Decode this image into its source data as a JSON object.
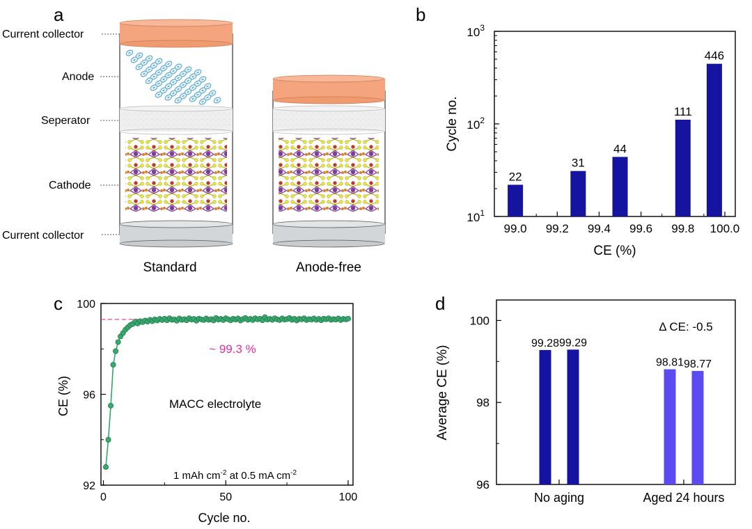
{
  "panels": {
    "a": {
      "letter": "a",
      "layer_labels": [
        "Current collector",
        "Anode",
        "Seperator",
        "Cathode",
        "Current collector"
      ],
      "cell_labels": [
        "Standard",
        "Anode-free"
      ]
    },
    "b": {
      "letter": "b"
    },
    "c": {
      "letter": "c"
    },
    "d": {
      "letter": "d"
    }
  },
  "colors": {
    "collector_top": "#f4a57e",
    "collector_bottom": "#d3d6d9",
    "separator": "#ececec",
    "anode_particle": "#6fb6dd",
    "bar_dark": "#1414a0",
    "bar_light": "#5b4bf0",
    "line_green": "#2ea866",
    "marker_green": "#3aa870",
    "reference_line": "#e8479a",
    "annotation_magenta": "#e030a0"
  },
  "chart_data": [
    {
      "id": "b",
      "type": "bar",
      "x": [
        99.0,
        99.3,
        99.5,
        99.8,
        99.95
      ],
      "values": [
        22,
        31,
        44,
        111,
        446
      ],
      "data_labels": [
        "22",
        "31",
        "44",
        "111",
        "446"
      ],
      "xlabel": "CE (%)",
      "ylabel": "Cycle no.",
      "xlim": [
        98.9,
        100.05
      ],
      "xticks": [
        "99.0",
        "99.2",
        "99.4",
        "99.6",
        "99.8",
        "100.0"
      ],
      "ylim": [
        10,
        1000
      ],
      "yscale": "log",
      "yticks": [
        {
          "base": "10",
          "exp": "1"
        },
        {
          "base": "10",
          "exp": "2"
        },
        {
          "base": "10",
          "exp": "3"
        }
      ],
      "grid": false
    },
    {
      "id": "c",
      "type": "line",
      "x": [
        1,
        2,
        3,
        4,
        5,
        6,
        7,
        8,
        9,
        10,
        11,
        12,
        13,
        14,
        15,
        16,
        17,
        18,
        19,
        20,
        21,
        22,
        23,
        24,
        25,
        26,
        27,
        28,
        29,
        30,
        31,
        32,
        33,
        34,
        35,
        36,
        37,
        38,
        39,
        40,
        41,
        42,
        43,
        44,
        45,
        46,
        47,
        48,
        49,
        50,
        51,
        52,
        53,
        54,
        55,
        56,
        57,
        58,
        59,
        60,
        61,
        62,
        63,
        64,
        65,
        66,
        67,
        68,
        69,
        70,
        71,
        72,
        73,
        74,
        75,
        76,
        77,
        78,
        79,
        80,
        81,
        82,
        83,
        84,
        85,
        86,
        87,
        88,
        89,
        90,
        91,
        92,
        93,
        94,
        95,
        96,
        97,
        98,
        99,
        100
      ],
      "values": [
        92.8,
        94.0,
        95.5,
        97.3,
        97.9,
        98.3,
        98.55,
        98.7,
        98.85,
        98.95,
        99.05,
        99.1,
        99.2,
        99.12,
        99.22,
        99.18,
        99.25,
        99.2,
        99.28,
        99.22,
        99.3,
        99.25,
        99.32,
        99.27,
        99.33,
        99.26,
        99.35,
        99.28,
        99.3,
        99.24,
        99.34,
        99.28,
        99.31,
        99.26,
        99.35,
        99.29,
        99.32,
        99.24,
        99.33,
        99.3,
        99.27,
        99.34,
        99.28,
        99.31,
        99.25,
        99.36,
        99.29,
        99.32,
        99.27,
        99.35,
        99.3,
        99.26,
        99.33,
        99.29,
        99.34,
        99.25,
        99.31,
        99.36,
        99.28,
        99.32,
        99.27,
        99.35,
        99.3,
        99.33,
        99.26,
        99.4,
        99.29,
        99.32,
        99.28,
        99.35,
        99.3,
        99.27,
        99.34,
        99.29,
        99.31,
        99.36,
        99.28,
        99.33,
        99.25,
        99.32,
        99.3,
        99.35,
        99.27,
        99.31,
        99.29,
        99.34,
        99.28,
        99.32,
        99.26,
        99.33,
        99.3,
        99.35,
        99.28,
        99.31,
        99.29,
        99.34,
        99.27,
        99.32,
        99.3,
        99.33
      ],
      "reference_y": 99.3,
      "xlabel": "Cycle no.",
      "ylabel": "CE (%)",
      "xlim": [
        -1,
        102
      ],
      "ylim": [
        92,
        100
      ],
      "xticks": [
        0,
        50,
        100
      ],
      "yticks": [
        92,
        96,
        100
      ],
      "annotations": {
        "ce_value": "~ 99.3 %",
        "electrolyte": "MACC electrolyte",
        "cond_a": "1 mAh cm",
        "cond_a_sup": "-2",
        "cond_b": " at 0.5 mA cm",
        "cond_b_sup": "-2"
      },
      "grid": false
    },
    {
      "id": "d",
      "type": "bar",
      "categories": [
        "No aging",
        "Aged 24 hours"
      ],
      "bars": [
        {
          "group": 0,
          "value": 99.28,
          "label": "99.28",
          "color": "#1414a0"
        },
        {
          "group": 0,
          "value": 99.29,
          "label": "99.29",
          "color": "#1414a0"
        },
        {
          "group": 1,
          "value": 98.81,
          "label": "98.81",
          "color": "#5b4bf0"
        },
        {
          "group": 1,
          "value": 98.77,
          "label": "98.77",
          "color": "#5b4bf0"
        }
      ],
      "ylabel": "Average CE (%)",
      "ylim": [
        96,
        100.5
      ],
      "yticks": [
        96,
        98,
        100
      ],
      "annotation": "Δ CE: -0.5",
      "grid": false
    }
  ]
}
